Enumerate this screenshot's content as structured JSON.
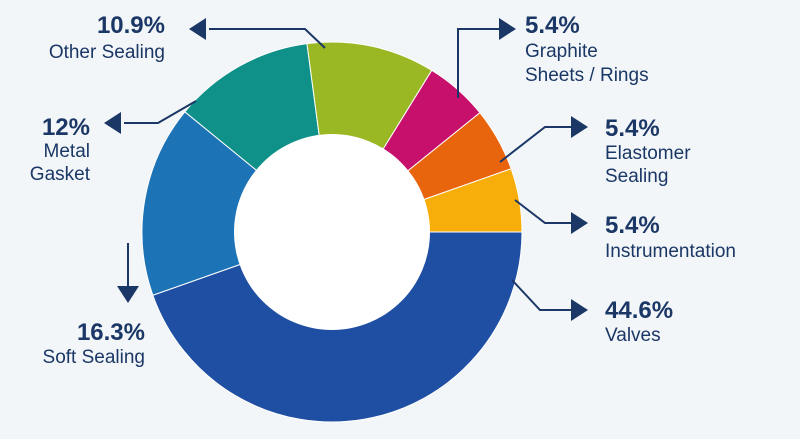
{
  "chart_data": {
    "type": "pie",
    "donut": true,
    "slices": [
      {
        "label": "Valves",
        "percent_label": "44.6%",
        "value": 44.6,
        "color": "#1f4fa3"
      },
      {
        "label": "Soft Sealing",
        "percent_label": "16.3%",
        "value": 16.3,
        "color": "#1c73b5"
      },
      {
        "label": "Metal Gasket",
        "percent_label": "12%",
        "value": 12,
        "color": "#0f918a"
      },
      {
        "label": "Other Sealing",
        "percent_label": "10.9%",
        "value": 10.9,
        "color": "#99b823"
      },
      {
        "label": "Graphite Sheets / Rings",
        "percent_label": "5.4%",
        "value": 5.4,
        "color": "#c70f6c"
      },
      {
        "label": "Elastomer Sealing",
        "percent_label": "5.4%",
        "value": 5.4,
        "color": "#e8650e"
      },
      {
        "label": "Instrumentation",
        "percent_label": "5.4%",
        "value": 5.4,
        "color": "#f7ae0a"
      }
    ],
    "leader_color": "#1b3766"
  }
}
